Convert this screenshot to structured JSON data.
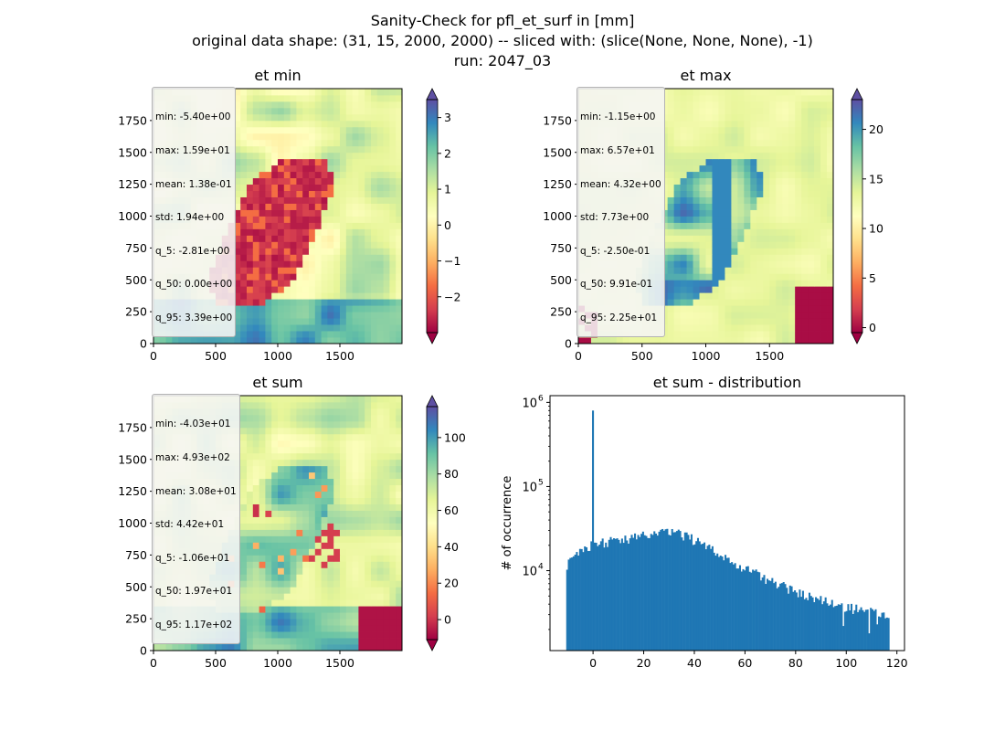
{
  "figure": {
    "title_lines": [
      "Sanity-Check for pfl_et_surf in [mm]",
      "original data shape: (31, 15, 2000, 2000) -- sliced with: (slice(None, None, None), -1)",
      "run: 2047_03"
    ]
  },
  "colormap": "Spectral",
  "chart_data": [
    {
      "type": "heatmap",
      "title": "et min",
      "x_ticks": [
        0,
        500,
        1000,
        1500
      ],
      "y_ticks": [
        0,
        250,
        500,
        750,
        1000,
        1250,
        1500,
        1750
      ],
      "extent": [
        0,
        2000,
        0,
        2000
      ],
      "colorbar": {
        "min": -3.0,
        "max": 3.5,
        "ticks": [
          -2,
          -1,
          0,
          1,
          2,
          3
        ],
        "tick_labels": [
          "−2",
          "−1",
          "0",
          "1",
          "2",
          "3"
        ],
        "extend": "both"
      },
      "stats": [
        "min: -5.40e+00",
        "max: 1.59e+01",
        "mean: 1.38e-01",
        "std: 1.94e+00",
        "q_5: -2.81e+00",
        "q_50: 0.00e+00",
        "q_95: 3.39e+00"
      ]
    },
    {
      "type": "heatmap",
      "title": "et max",
      "x_ticks": [
        0,
        500,
        1000,
        1500
      ],
      "y_ticks": [
        0,
        250,
        500,
        750,
        1000,
        1250,
        1500,
        1750
      ],
      "extent": [
        0,
        2000,
        0,
        2000
      ],
      "colorbar": {
        "min": -0.5,
        "max": 23,
        "ticks": [
          0,
          5,
          10,
          15,
          20
        ],
        "tick_labels": [
          "0",
          "5",
          "10",
          "15",
          "20"
        ],
        "extend": "both"
      },
      "stats": [
        "min: -1.15e+00",
        "max: 6.57e+01",
        "mean: 4.32e+00",
        "std: 7.73e+00",
        "q_5: -2.50e-01",
        "q_50: 9.91e-01",
        "q_95: 2.25e+01"
      ]
    },
    {
      "type": "heatmap",
      "title": "et sum",
      "x_ticks": [
        0,
        500,
        1000,
        1500
      ],
      "y_ticks": [
        0,
        250,
        500,
        750,
        1000,
        1250,
        1500,
        1750
      ],
      "extent": [
        0,
        2000,
        0,
        2000
      ],
      "colorbar": {
        "min": -11,
        "max": 117,
        "ticks": [
          0,
          20,
          40,
          60,
          80,
          100
        ],
        "tick_labels": [
          "0",
          "20",
          "40",
          "60",
          "80",
          "100"
        ],
        "extend": "both"
      },
      "stats": [
        "min: -4.03e+01",
        "max: 4.93e+02",
        "mean: 3.08e+01",
        "std: 4.42e+01",
        "q_5: -1.06e+01",
        "q_50: 1.97e+01",
        "q_95: 1.17e+02"
      ]
    },
    {
      "type": "bar",
      "title": "et sum - distribution",
      "xlabel": "",
      "ylabel": "# of occurrence",
      "xlim": [
        -17,
        123
      ],
      "ylim_log10": [
        3.05,
        6.08
      ],
      "y_scale": "log",
      "x_ticks": [
        0,
        20,
        40,
        60,
        80,
        100,
        120
      ],
      "y_ticks": [
        {
          "exp": 4,
          "base": "10",
          "sup": "4"
        },
        {
          "exp": 5,
          "base": "10",
          "sup": "5"
        },
        {
          "exp": 6,
          "base": "10",
          "sup": "6"
        }
      ],
      "bins": {
        "start": -10.6,
        "end": 117.0,
        "count": 200
      },
      "envelope": [
        [
          -10.6,
          11000
        ],
        [
          -8,
          14000
        ],
        [
          -5,
          17000
        ],
        [
          -2,
          19000
        ],
        [
          0,
          20000
        ],
        [
          5,
          22000
        ],
        [
          10,
          23000
        ],
        [
          15,
          24000
        ],
        [
          20,
          26000
        ],
        [
          25,
          28000
        ],
        [
          30,
          29500
        ],
        [
          35,
          27000
        ],
        [
          40,
          23000
        ],
        [
          45,
          19000
        ],
        [
          50,
          15000
        ],
        [
          55,
          12500
        ],
        [
          60,
          10500
        ],
        [
          65,
          9000
        ],
        [
          70,
          7500
        ],
        [
          75,
          6500
        ],
        [
          80,
          5500
        ],
        [
          85,
          5000
        ],
        [
          90,
          4500
        ],
        [
          95,
          4000
        ],
        [
          100,
          3700
        ],
        [
          105,
          3400
        ],
        [
          110,
          3200
        ],
        [
          117,
          3000
        ]
      ],
      "spike": {
        "x": -0.2,
        "count": 800000
      },
      "dips": [
        {
          "x": 99,
          "count": 2200
        },
        {
          "x": 109,
          "count": 1800
        },
        {
          "x": 112,
          "count": 2300
        }
      ]
    }
  ]
}
